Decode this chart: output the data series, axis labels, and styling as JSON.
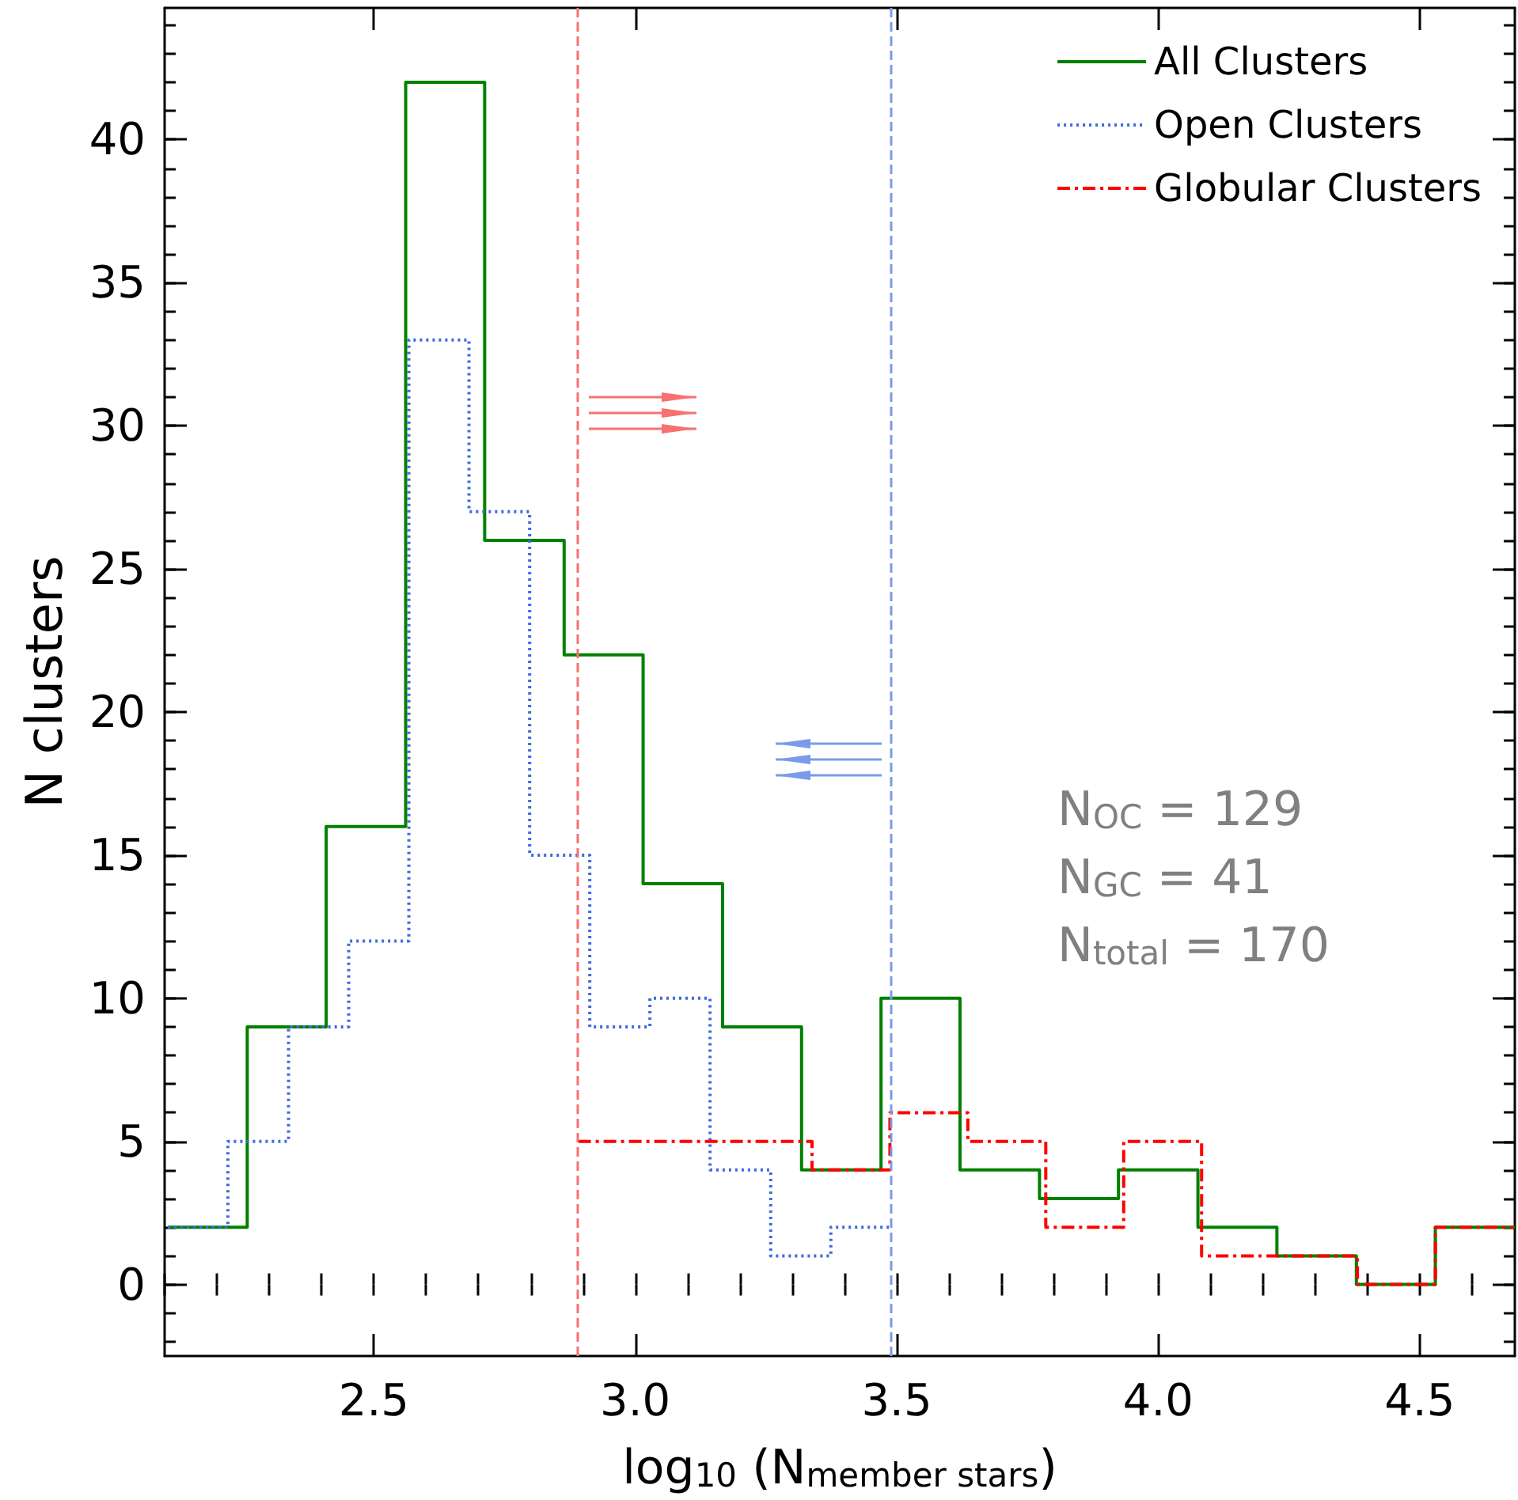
{
  "chart_data": {
    "type": "step",
    "xlabel": "log$_{10}$ (N$_{member stars}$)",
    "ylabel": "N clusters",
    "xlim": [
      2.1,
      4.682
    ],
    "xticks": [
      2.5,
      {
        "value": 3,
        "label": "3.0"
      },
      3.5,
      {
        "value": 4,
        "label": "4.0"
      },
      4.5
    ],
    "ylim": [
      -2.5,
      44.6
    ],
    "yticks": [
      0,
      5,
      10,
      15,
      20,
      25,
      30,
      35,
      40
    ],
    "grid": false,
    "legend": "top right",
    "marker": "none",
    "annotations": [
      "N$_{OC}$ = 129",
      "N$_{GC}$ = 41",
      "N$_{total}$ = 170"
    ],
    "ref_lines": [
      {
        "axis": "x",
        "value": 2.89,
        "color": "#f87171",
        "line_style": "dashed"
      },
      {
        "axis": "x",
        "value": 3.49,
        "color": "#7b9be8",
        "line_style": "dashed"
      }
    ],
    "series": [
      {
        "name": "All Clusters",
        "color": "#008000",
        "line_style": "solid",
        "x": [
          2.106,
          2.258,
          2.409,
          2.561,
          2.712,
          2.864,
          3.015,
          3.167,
          3.318,
          3.47,
          3.621,
          3.773,
          3.924,
          4.076,
          4.227,
          4.379,
          4.53,
          4.682
        ],
        "values": [
          2,
          9,
          16,
          42,
          26,
          22,
          14,
          9,
          4,
          10,
          4,
          3,
          4,
          2,
          1,
          0,
          2,
          2
        ]
      },
      {
        "name": "Open Clusters",
        "color": "#4169e1",
        "line_style": "dotted",
        "x": [
          2.106,
          2.221,
          2.337,
          2.452,
          2.567,
          2.682,
          2.798,
          2.913,
          3.028,
          3.143,
          3.259,
          3.374,
          3.489
        ],
        "values": [
          2,
          5,
          9,
          12,
          33,
          27,
          15,
          9,
          10,
          4,
          1,
          2,
          2
        ]
      },
      {
        "name": "Globular Clusters",
        "color": "#ff0000",
        "line_style": "dashdot",
        "x": [
          2.891,
          3.04,
          3.189,
          3.338,
          3.487,
          3.636,
          3.785,
          3.934,
          4.083,
          4.232,
          4.381,
          4.53,
          4.679
        ],
        "values": [
          5,
          5,
          5,
          4,
          6,
          5,
          2,
          5,
          1,
          1,
          0,
          2,
          2
        ]
      }
    ]
  }
}
